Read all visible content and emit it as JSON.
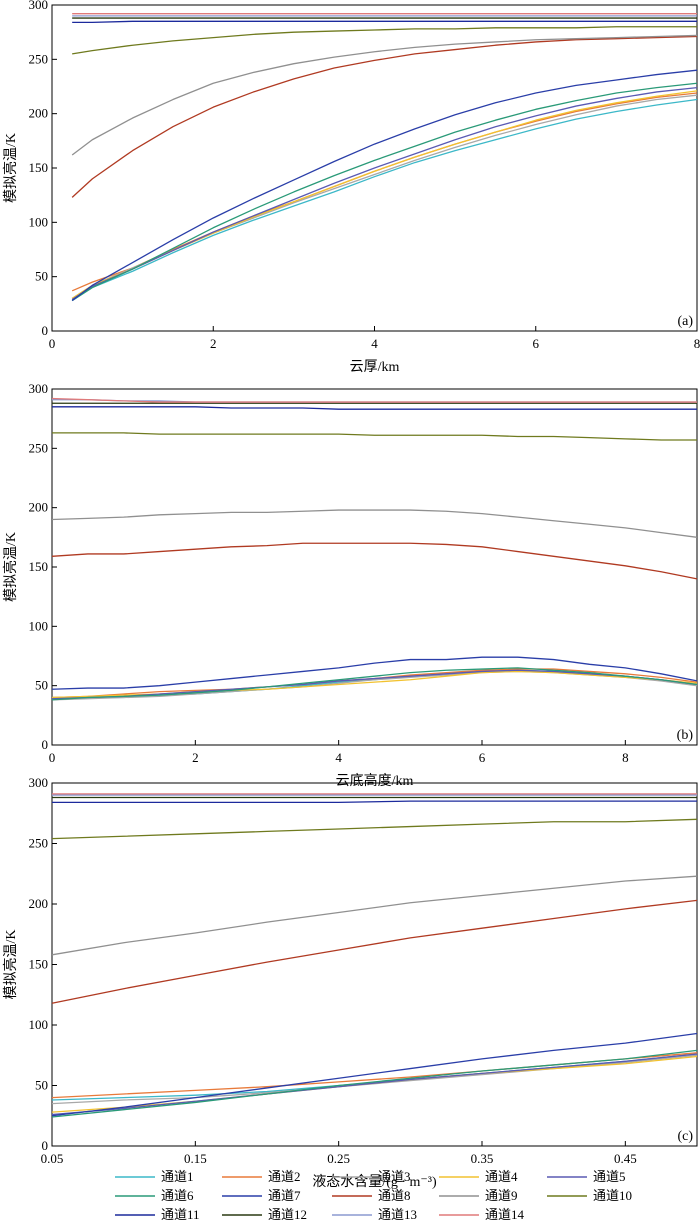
{
  "chart_data": [
    {
      "type": "line",
      "panel_label": "(a)",
      "xlabel": "云厚/km",
      "ylabel": "模拟亮温/K",
      "xlim": [
        0,
        8
      ],
      "ylim": [
        0,
        300
      ],
      "xticks": [
        0,
        2,
        4,
        6,
        8
      ],
      "xtick_labels": [
        "0",
        "2",
        "4",
        "6",
        "8"
      ],
      "yticks": [
        0,
        50,
        100,
        150,
        200,
        250,
        300
      ],
      "ytick_labels": [
        "0",
        "50",
        "100",
        "150",
        "200",
        "250",
        "300"
      ],
      "x": [
        0.25,
        0.5,
        1,
        1.5,
        2,
        2.5,
        3,
        3.5,
        4,
        4.5,
        5,
        5.5,
        6,
        6.5,
        7,
        7.5,
        8
      ],
      "series": [
        {
          "name": "通道1",
          "values": [
            28,
            40,
            55,
            72,
            88,
            102,
            115,
            128,
            142,
            155,
            166,
            176,
            186,
            195,
            202,
            208,
            213
          ]
        },
        {
          "name": "通道2",
          "values": [
            37,
            45,
            58,
            75,
            91,
            106,
            119,
            133,
            147,
            160,
            172,
            183,
            193,
            202,
            209,
            215,
            219
          ]
        },
        {
          "name": "通道3",
          "values": [
            30,
            42,
            58,
            74,
            90,
            104,
            118,
            131,
            144,
            157,
            169,
            180,
            190,
            199,
            207,
            213,
            217
          ]
        },
        {
          "name": "通道4",
          "values": [
            30,
            42,
            57,
            74,
            90,
            105,
            119,
            133,
            147,
            160,
            172,
            183,
            194,
            203,
            210,
            216,
            221
          ]
        },
        {
          "name": "通道5",
          "values": [
            29,
            41,
            57,
            74,
            91,
            106,
            121,
            136,
            150,
            163,
            176,
            188,
            198,
            207,
            214,
            220,
            224
          ]
        },
        {
          "name": "通道6",
          "values": [
            28,
            40,
            57,
            76,
            95,
            112,
            128,
            143,
            157,
            170,
            183,
            194,
            204,
            212,
            219,
            224,
            228
          ]
        },
        {
          "name": "通道7",
          "values": [
            28,
            42,
            63,
            84,
            104,
            122,
            139,
            156,
            172,
            186,
            199,
            210,
            219,
            226,
            231,
            236,
            240
          ]
        },
        {
          "name": "通道8",
          "values": [
            123,
            140,
            166,
            188,
            206,
            220,
            232,
            242,
            249,
            255,
            259,
            263,
            266,
            268,
            269,
            270,
            271
          ]
        },
        {
          "name": "通道9",
          "values": [
            162,
            176,
            196,
            213,
            228,
            238,
            246,
            252,
            257,
            261,
            264,
            266,
            268,
            269,
            270,
            271,
            272
          ]
        },
        {
          "name": "通道10",
          "values": [
            255,
            258,
            263,
            267,
            270,
            273,
            275,
            276,
            277,
            278,
            278,
            279,
            279,
            279,
            280,
            280,
            280
          ]
        },
        {
          "name": "通道11",
          "values": [
            284,
            284,
            285,
            285,
            285,
            285,
            285,
            285,
            285,
            285,
            285,
            285,
            285,
            285,
            285,
            285,
            285
          ]
        },
        {
          "name": "通道12",
          "values": [
            288,
            288,
            288,
            288,
            288,
            288,
            288,
            288,
            288,
            288,
            288,
            288,
            288,
            288,
            288,
            288,
            288
          ]
        },
        {
          "name": "通道13",
          "values": [
            290,
            290,
            290,
            290,
            290,
            290,
            290,
            290,
            290,
            290,
            290,
            290,
            290,
            290,
            290,
            290,
            290
          ]
        },
        {
          "name": "通道14",
          "values": [
            292,
            292,
            292,
            292,
            292,
            292,
            292,
            292,
            292,
            292,
            292,
            292,
            292,
            292,
            292,
            292,
            292
          ]
        }
      ]
    },
    {
      "type": "line",
      "panel_label": "(b)",
      "xlabel": "云底高度/km",
      "ylabel": "模拟亮温/K",
      "xlim": [
        0,
        9
      ],
      "ylim": [
        0,
        300
      ],
      "xticks": [
        0,
        2,
        4,
        6,
        8
      ],
      "xtick_labels": [
        "0",
        "2",
        "4",
        "6",
        "8"
      ],
      "yticks": [
        0,
        50,
        100,
        150,
        200,
        250,
        300
      ],
      "ytick_labels": [
        "0",
        "50",
        "100",
        "150",
        "200",
        "250",
        "300"
      ],
      "x": [
        0,
        0.5,
        1,
        1.5,
        2,
        2.5,
        3,
        3.5,
        4,
        4.5,
        5,
        5.5,
        6,
        6.5,
        7,
        7.5,
        8,
        8.5,
        9
      ],
      "series": [
        {
          "name": "通道1",
          "values": [
            40,
            40,
            40,
            42,
            43,
            45,
            47,
            50,
            53,
            55,
            58,
            60,
            62,
            63,
            62,
            60,
            58,
            55,
            51
          ]
        },
        {
          "name": "通道2",
          "values": [
            40,
            41,
            43,
            45,
            46,
            47,
            49,
            51,
            54,
            56,
            59,
            61,
            63,
            64,
            64,
            62,
            60,
            57,
            53
          ]
        },
        {
          "name": "通道3",
          "values": [
            38,
            39,
            40,
            41,
            43,
            45,
            47,
            49,
            52,
            55,
            57,
            59,
            61,
            62,
            61,
            59,
            57,
            54,
            50
          ]
        },
        {
          "name": "通道4",
          "values": [
            40,
            41,
            42,
            43,
            45,
            46,
            47,
            49,
            51,
            53,
            55,
            58,
            61,
            62,
            61,
            59,
            57,
            55,
            52
          ]
        },
        {
          "name": "通道5",
          "values": [
            39,
            40,
            41,
            43,
            45,
            47,
            49,
            51,
            54,
            56,
            58,
            60,
            62,
            63,
            62,
            60,
            58,
            55,
            51
          ]
        },
        {
          "name": "通道6",
          "values": [
            38,
            40,
            41,
            42,
            44,
            46,
            49,
            52,
            55,
            58,
            61,
            63,
            64,
            65,
            63,
            61,
            58,
            55,
            51
          ]
        },
        {
          "name": "通道7",
          "values": [
            47,
            48,
            48,
            50,
            53,
            56,
            59,
            62,
            65,
            69,
            72,
            72,
            74,
            74,
            72,
            68,
            65,
            60,
            54
          ]
        },
        {
          "name": "通道8",
          "values": [
            159,
            161,
            161,
            163,
            165,
            167,
            168,
            170,
            170,
            170,
            170,
            169,
            167,
            163,
            159,
            155,
            151,
            146,
            140
          ]
        },
        {
          "name": "通道9",
          "values": [
            190,
            191,
            192,
            194,
            195,
            196,
            196,
            197,
            198,
            198,
            198,
            197,
            195,
            192,
            189,
            186,
            183,
            179,
            175
          ]
        },
        {
          "name": "通道10",
          "values": [
            263,
            263,
            263,
            262,
            262,
            262,
            262,
            262,
            262,
            261,
            261,
            261,
            261,
            260,
            260,
            259,
            258,
            257,
            257
          ]
        },
        {
          "name": "通道11",
          "values": [
            285,
            285,
            285,
            285,
            285,
            284,
            284,
            284,
            283,
            283,
            283,
            283,
            283,
            283,
            283,
            283,
            283,
            283,
            283
          ]
        },
        {
          "name": "通道12",
          "values": [
            288,
            288,
            288,
            288,
            288,
            288,
            288,
            288,
            288,
            288,
            288,
            288,
            288,
            288,
            288,
            288,
            288,
            288,
            288
          ]
        },
        {
          "name": "通道13",
          "values": [
            291,
            291,
            290,
            290,
            289,
            289,
            289,
            289,
            289,
            289,
            289,
            289,
            289,
            289,
            289,
            289,
            289,
            289,
            289
          ]
        },
        {
          "name": "通道14",
          "values": [
            292,
            291,
            290,
            289,
            289,
            289,
            289,
            289,
            289,
            289,
            289,
            289,
            289,
            289,
            289,
            289,
            289,
            289,
            289
          ]
        }
      ]
    },
    {
      "type": "line",
      "panel_label": "(c)",
      "xlabel": "液态水含量/(g · m⁻³)",
      "ylabel": "模拟亮温/K",
      "xlim": [
        0.05,
        0.5
      ],
      "ylim": [
        0,
        300
      ],
      "xticks": [
        0.05,
        0.15,
        0.25,
        0.35,
        0.45
      ],
      "xtick_labels": [
        "0.05",
        "0.15",
        "0.25",
        "0.35",
        "0.45"
      ],
      "yticks": [
        0,
        50,
        100,
        150,
        200,
        250,
        300
      ],
      "ytick_labels": [
        "0",
        "50",
        "100",
        "150",
        "200",
        "250",
        "300"
      ],
      "x": [
        0.05,
        0.1,
        0.15,
        0.2,
        0.25,
        0.3,
        0.35,
        0.4,
        0.45,
        0.5
      ],
      "series": [
        {
          "name": "通道1",
          "values": [
            38,
            40,
            42,
            45,
            50,
            55,
            60,
            65,
            70,
            76
          ]
        },
        {
          "name": "通道2",
          "values": [
            40,
            43,
            46,
            49,
            53,
            57,
            62,
            67,
            72,
            77
          ]
        },
        {
          "name": "通道3",
          "values": [
            35,
            38,
            40,
            44,
            49,
            54,
            59,
            64,
            69,
            75
          ]
        },
        {
          "name": "通道4",
          "values": [
            28,
            32,
            37,
            43,
            49,
            55,
            60,
            64,
            68,
            74
          ]
        },
        {
          "name": "通道5",
          "values": [
            26,
            31,
            37,
            43,
            49,
            55,
            60,
            65,
            70,
            76
          ]
        },
        {
          "name": "通道6",
          "values": [
            24,
            30,
            36,
            43,
            50,
            56,
            62,
            67,
            72,
            79
          ]
        },
        {
          "name": "通道7",
          "values": [
            25,
            32,
            40,
            48,
            56,
            64,
            72,
            79,
            85,
            93
          ]
        },
        {
          "name": "通道8",
          "values": [
            118,
            130,
            141,
            152,
            162,
            172,
            180,
            188,
            196,
            203
          ]
        },
        {
          "name": "通道9",
          "values": [
            158,
            168,
            176,
            185,
            193,
            201,
            207,
            213,
            219,
            223
          ]
        },
        {
          "name": "通道10",
          "values": [
            254,
            256,
            258,
            260,
            262,
            264,
            266,
            268,
            268,
            270
          ]
        },
        {
          "name": "通道11",
          "values": [
            284,
            284,
            284,
            284,
            284,
            285,
            285,
            285,
            285,
            285
          ]
        },
        {
          "name": "通道12",
          "values": [
            288,
            288,
            288,
            288,
            288,
            288,
            288,
            288,
            288,
            288
          ]
        },
        {
          "name": "通道13",
          "values": [
            290,
            290,
            290,
            290,
            290,
            290,
            290,
            290,
            290,
            290
          ]
        },
        {
          "name": "通道14",
          "values": [
            291,
            291,
            291,
            291,
            291,
            291,
            291,
            291,
            291,
            291
          ]
        }
      ]
    }
  ],
  "legend": {
    "items": [
      {
        "label": "通道1",
        "color": "#3cb8c8"
      },
      {
        "label": "通道2",
        "color": "#e87a3a"
      },
      {
        "label": "通道3",
        "color": "#a8a8a8"
      },
      {
        "label": "通道4",
        "color": "#f2c230"
      },
      {
        "label": "通道5",
        "color": "#5a5ab4"
      },
      {
        "label": "通道6",
        "color": "#2a9a78"
      },
      {
        "label": "通道7",
        "color": "#2a3ea8"
      },
      {
        "label": "通道8",
        "color": "#b03a22"
      },
      {
        "label": "通道9",
        "color": "#909090"
      },
      {
        "label": "通道10",
        "color": "#6f7a1e"
      },
      {
        "label": "通道11",
        "color": "#1c2a9c"
      },
      {
        "label": "通道12",
        "color": "#2a3a12"
      },
      {
        "label": "通道13",
        "color": "#8c9ad0"
      },
      {
        "label": "通道14",
        "color": "#e07a7a"
      }
    ]
  }
}
